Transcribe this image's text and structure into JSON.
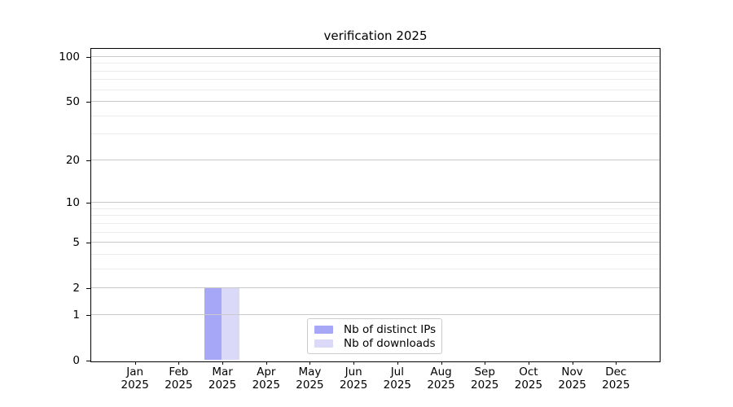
{
  "chart_data": {
    "type": "bar",
    "title": "verification 2025",
    "categories": [
      "Jan",
      "Feb",
      "Mar",
      "Apr",
      "May",
      "Jun",
      "Jul",
      "Aug",
      "Sep",
      "Oct",
      "Nov",
      "Dec"
    ],
    "category_year": "2025",
    "series": [
      {
        "name": "Nb of distinct IPs",
        "color": "#a7a7f7",
        "values": [
          0,
          0,
          2,
          0,
          0,
          0,
          0,
          0,
          0,
          0,
          0,
          0
        ]
      },
      {
        "name": "Nb of downloads",
        "color": "#dadaf8",
        "values": [
          0,
          0,
          2,
          0,
          0,
          0,
          0,
          0,
          0,
          0,
          0,
          0
        ]
      }
    ],
    "xlabel": "",
    "ylabel": "",
    "y_scale": "log1p",
    "y_ticks_major": [
      0,
      1,
      2,
      5,
      10,
      20,
      50,
      100
    ],
    "y_ticks_minor": [
      3,
      4,
      6,
      7,
      8,
      9,
      30,
      40,
      60,
      70,
      80,
      90
    ],
    "ylim": [
      0,
      113
    ],
    "xlim": [
      -1,
      12
    ],
    "bar_width": 0.8,
    "grid": "on",
    "grid_above_bars": true,
    "legend_position": "lower center",
    "colors": {
      "grid_major": "#c9c9c9",
      "grid_minor": "#ececec",
      "axis_frame": "#000000",
      "text": "#000000",
      "legend_border": "#cccccc",
      "background": "#ffffff"
    }
  }
}
